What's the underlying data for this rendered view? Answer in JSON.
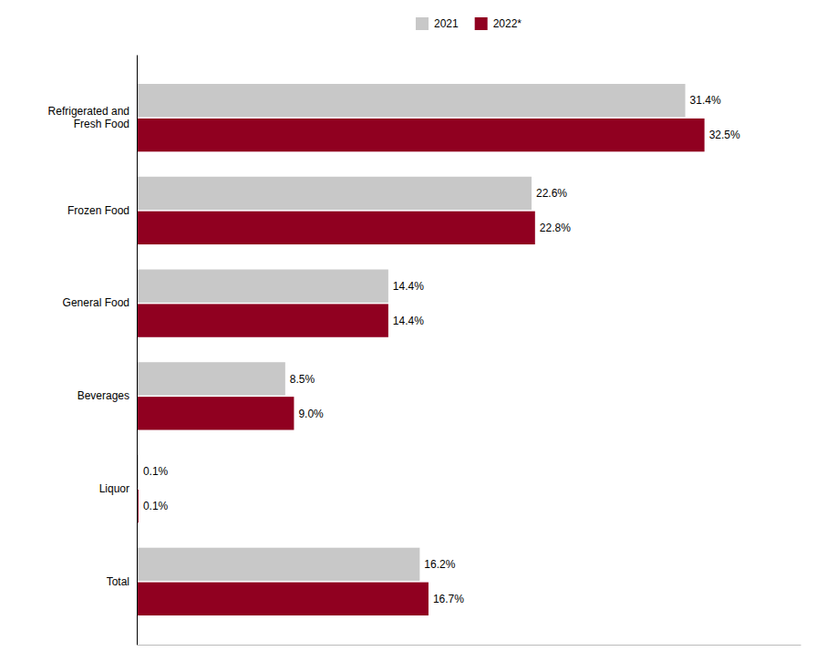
{
  "chart_data": {
    "type": "bar",
    "orientation": "horizontal",
    "categories": [
      "Total",
      "Liquor",
      "Beverages",
      "General Food",
      "Frozen Food",
      "Refrigerated and\nFresh Food"
    ],
    "series": [
      {
        "name": "2021",
        "color": "#c8c8c8",
        "values": [
          16.2,
          0.1,
          8.5,
          14.4,
          22.6,
          31.4
        ],
        "value_labels": [
          "16.2%",
          "0.1%",
          "8.5%",
          "14.4%",
          "22.6%",
          "31.4%"
        ]
      },
      {
        "name": "2022*",
        "color": "#900020",
        "values": [
          16.7,
          0.1,
          9.0,
          14.4,
          22.8,
          32.5
        ],
        "value_labels": [
          "16.7%",
          "0.1%",
          "9.0%",
          "14.4%",
          "22.8%",
          "32.5%"
        ]
      }
    ],
    "xlim": [
      0,
      38
    ],
    "tick_labels": "y",
    "data_labels": true,
    "legend": "top",
    "grid": false
  }
}
